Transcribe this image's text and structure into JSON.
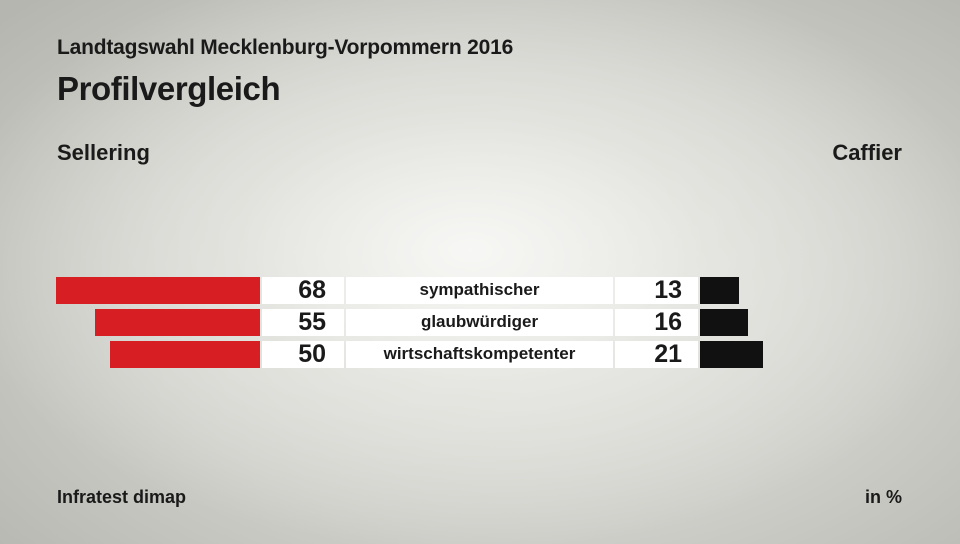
{
  "header": {
    "subtitle": "Landtagswahl Mecklenburg-Vorpommern 2016",
    "title": "Profilvergleich"
  },
  "footer": {
    "source": "Infratest dimap",
    "unit": "in %"
  },
  "colors": {
    "left_bar": "#d71f23",
    "right_bar": "#111111",
    "label_cell": "#ffffff"
  },
  "chart_data": {
    "type": "bar",
    "orientation": "horizontal",
    "layout": "butterfly",
    "categories": [
      "sympathischer",
      "glaubwürdiger",
      "wirtschaftskompetenter"
    ],
    "series": [
      {
        "name": "Sellering",
        "side": "left",
        "values": [
          68,
          55,
          50
        ]
      },
      {
        "name": "Caffier",
        "side": "right",
        "values": [
          13,
          16,
          21
        ]
      }
    ],
    "unit": "%"
  }
}
